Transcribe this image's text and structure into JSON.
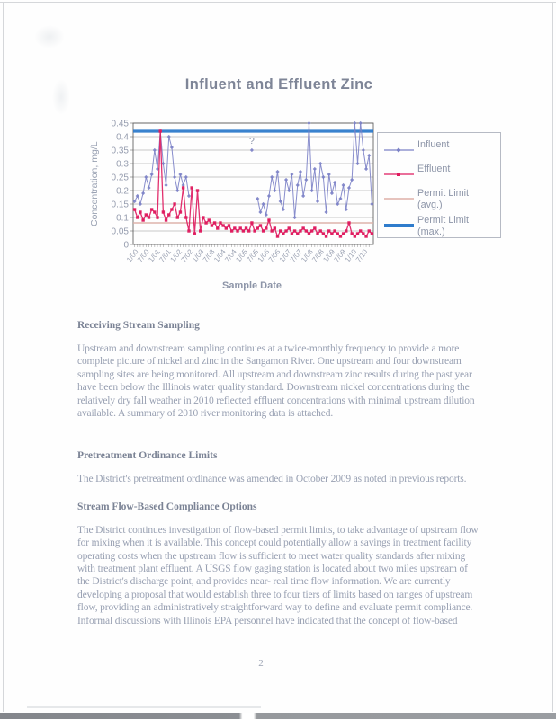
{
  "page": {
    "page_number": "2"
  },
  "chart_data": {
    "type": "line",
    "title": "Influent and Effluent Zinc",
    "xlabel": "Sample Date",
    "ylabel": "Concentration, mg/L",
    "ylim": [
      0,
      0.45
    ],
    "y_ticks": [
      0,
      0.05,
      0.1,
      0.15,
      0.2,
      0.25,
      0.3,
      0.35,
      0.4,
      0.45
    ],
    "y_tick_labels": [
      "0",
      "0.05",
      "0.1",
      "0.15",
      "0.2",
      "0.25",
      "0.3",
      "0.35",
      "0.4",
      "0.45"
    ],
    "x_tick_labels": [
      "1/00",
      "7/00",
      "1/01",
      "7/01",
      "1/02",
      "7/02",
      "1/03",
      "7/03",
      "1/04",
      "7/04",
      "1/05",
      "7/05",
      "1/06",
      "7/06",
      "1/07",
      "7/07",
      "1/08",
      "7/08",
      "1/09",
      "7/09",
      "1/10",
      "7/10"
    ],
    "grid": true,
    "legend_position": "right",
    "legend": [
      {
        "name": "Influent",
        "color": "#7b81c6",
        "style": "line-diamond"
      },
      {
        "name": "Effluent",
        "color": "#df1a5e",
        "style": "line-square"
      },
      {
        "name": "Permit Limit (avg.)",
        "color": "#ddafa7",
        "style": "thin-line"
      },
      {
        "name": "Permit Limit (max.)",
        "color": "#2f7ccc",
        "style": "thick-line"
      }
    ],
    "series": [
      {
        "name": "Influent",
        "color": "#7b81c6",
        "marker": "diamond",
        "values": [
          0.16,
          0.18,
          0.15,
          0.19,
          0.25,
          0.21,
          0.26,
          0.35,
          0.28,
          0.42,
          0.3,
          0.22,
          0.4,
          0.36,
          0.25,
          0.2,
          0.26,
          0.22,
          0.25,
          0.18,
          null,
          null,
          null,
          null,
          null,
          null,
          null,
          null,
          null,
          null,
          null,
          null,
          null,
          null,
          null,
          null,
          null,
          null,
          null,
          null,
          null,
          0.35,
          null,
          0.17,
          0.12,
          0.15,
          0.11,
          0.18,
          0.25,
          0.2,
          0.27,
          0.16,
          0.13,
          0.24,
          0.2,
          0.26,
          0.1,
          0.22,
          0.27,
          0.18,
          0.24,
          0.48,
          0.2,
          0.28,
          0.16,
          0.3,
          0.25,
          0.12,
          0.26,
          0.19,
          0.23,
          0.15,
          0.17,
          0.22,
          0.13,
          0.21,
          0.24,
          0.46,
          0.3,
          0.47,
          0.35,
          0.28,
          0.33,
          0.15
        ]
      },
      {
        "name": "Effluent",
        "color": "#df1a5e",
        "marker": "square",
        "values": [
          0.13,
          0.1,
          0.12,
          0.09,
          0.11,
          0.1,
          0.13,
          0.12,
          0.1,
          0.42,
          0.12,
          0.09,
          0.11,
          0.13,
          0.15,
          0.1,
          0.12,
          0.21,
          0.1,
          0.05,
          0.21,
          0.04,
          0.2,
          0.05,
          0.1,
          0.08,
          0.09,
          0.07,
          0.08,
          0.06,
          0.08,
          0.07,
          0.06,
          0.07,
          0.05,
          0.06,
          0.05,
          0.06,
          0.05,
          0.06,
          0.05,
          0.08,
          0.05,
          0.06,
          0.07,
          0.05,
          0.06,
          0.09,
          0.05,
          0.06,
          0.03,
          0.05,
          0.04,
          0.05,
          0.06,
          0.04,
          0.05,
          0.04,
          0.05,
          0.06,
          0.05,
          0.04,
          0.05,
          0.06,
          0.04,
          0.05,
          0.04,
          0.03,
          0.05,
          0.04,
          0.05,
          0.04,
          0.03,
          0.04,
          0.05,
          0.08,
          0.04,
          0.03,
          0.04,
          0.05,
          0.04,
          0.03,
          0.05,
          0.04
        ]
      }
    ],
    "reference_lines": [
      {
        "name": "Permit Limit (avg.)",
        "value": 0.08,
        "color": "#ddafa7",
        "width": 1.6
      },
      {
        "name": "Permit Limit (max.)",
        "value": 0.42,
        "color": "#2f7ccc",
        "width": 3.2
      }
    ],
    "annotation": {
      "text": "?",
      "series_index": 0,
      "point_index": 41
    }
  },
  "sections": [
    {
      "heading": "Receiving Stream Sampling",
      "body": "Upstream and downstream sampling continues at a twice-monthly frequency to provide a more complete picture of nickel and zinc in the Sangamon River.  One upstream and four downstream  sampling sites are being monitored.  All upstream and downstream zinc results during the past year have been below the Illinois water quality standard. Downstream nickel concentrations during the relatively dry fall weather in 2010 reflected effluent concentrations with minimal upstream dilution available.  A summary of 2010 river monitoring data is attached."
    },
    {
      "heading": "Pretreatment Ordinance Limits",
      "body": "The District's pretreatment ordinance was amended in October 2009 as noted in previous reports."
    },
    {
      "heading": "Stream Flow-Based Compliance Options",
      "body": "The District continues investigation of flow-based permit limits, to take advantage of upstream flow for mixing when it is available.  This concept could potentially allow a savings in treatment facility operating costs when the upstream flow is sufficient to meet water quality standards after mixing with treatment plant effluent.  A USGS flow gaging station is located about two miles upstream of the District's discharge point, and provides near- real time flow information.  We are currently developing a proposal that would establish three to four tiers of limits based on ranges of upstream flow, providing an administratively straightforward way to define and evaluate permit compliance.  Informal discussions with Illinois EPA personnel have indicated that the concept of flow-based"
    }
  ]
}
